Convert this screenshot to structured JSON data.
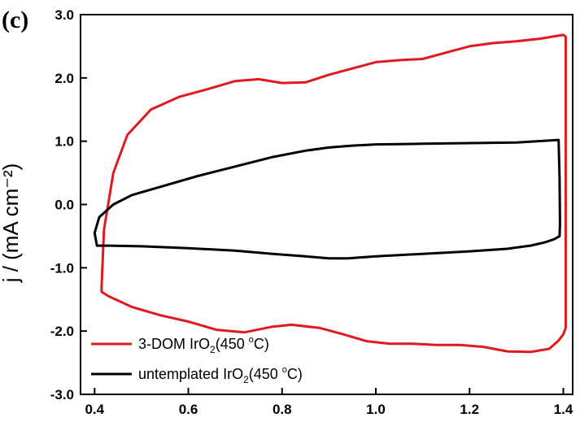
{
  "panel_label": "(c)",
  "chart_data": {
    "type": "line",
    "title": "",
    "xlabel": "",
    "ylabel": "j / (mA cm⁻²)",
    "xlim": [
      0.37,
      1.42
    ],
    "ylim": [
      -3.0,
      3.0
    ],
    "x_ticks": [
      0.4,
      0.6,
      0.8,
      1.0,
      1.2,
      1.4
    ],
    "x_tick_labels": [
      "0.4",
      "0.6",
      "0.8",
      "1.0",
      "1.2",
      "1.4"
    ],
    "y_ticks": [
      3.0,
      2.0,
      1.0,
      0.0,
      -1.0,
      -2.0,
      -3.0
    ],
    "y_tick_labels": [
      "3.0",
      "2.0",
      "1.0",
      "0.0",
      "-1.0",
      "-2.0",
      "-3.0"
    ],
    "grid": false,
    "legend_position": "bottom-left",
    "series": [
      {
        "name": "3-DOM IrO2(450 °C)",
        "legend_parts": {
          "prefix": "3-DOM IrO",
          "sub": "2",
          "mid": "(450 ",
          "sup": "o",
          "suffix": "C)"
        },
        "color": "#e0191f",
        "x": [
          0.415,
          0.42,
          0.44,
          0.47,
          0.52,
          0.58,
          0.64,
          0.7,
          0.75,
          0.8,
          0.85,
          0.9,
          0.95,
          1.0,
          1.05,
          1.1,
          1.15,
          1.2,
          1.25,
          1.3,
          1.35,
          1.4,
          1.405,
          1.405,
          1.4,
          1.39,
          1.37,
          1.33,
          1.28,
          1.23,
          1.18,
          1.13,
          1.08,
          1.03,
          0.98,
          0.93,
          0.88,
          0.82,
          0.78,
          0.72,
          0.66,
          0.6,
          0.54,
          0.48,
          0.43,
          0.415,
          0.415
        ],
        "y": [
          -1.3,
          -0.4,
          0.5,
          1.1,
          1.5,
          1.7,
          1.82,
          1.95,
          1.98,
          1.92,
          1.93,
          2.05,
          2.15,
          2.25,
          2.28,
          2.3,
          2.4,
          2.5,
          2.55,
          2.58,
          2.62,
          2.68,
          2.65,
          -1.95,
          -2.05,
          -2.15,
          -2.28,
          -2.33,
          -2.32,
          -2.25,
          -2.22,
          -2.22,
          -2.2,
          -2.2,
          -2.16,
          -2.05,
          -1.95,
          -1.9,
          -1.93,
          -2.02,
          -1.98,
          -1.85,
          -1.75,
          -1.62,
          -1.45,
          -1.38,
          -1.3
        ]
      },
      {
        "name": "untemplated IrO2(450 °C)",
        "legend_parts": {
          "prefix": "untemplated IrO",
          "sub": "2",
          "mid": "(450 ",
          "sup": "o",
          "suffix": "C)"
        },
        "color": "#000000",
        "x": [
          0.405,
          0.4,
          0.41,
          0.44,
          0.48,
          0.55,
          0.62,
          0.7,
          0.78,
          0.85,
          0.9,
          0.95,
          1.0,
          1.1,
          1.2,
          1.3,
          1.39,
          1.392,
          1.393,
          1.392,
          1.38,
          1.36,
          1.33,
          1.28,
          1.2,
          1.1,
          1.0,
          0.94,
          0.9,
          0.85,
          0.78,
          0.7,
          0.6,
          0.5,
          0.43,
          0.41,
          0.405
        ],
        "y": [
          -0.65,
          -0.45,
          -0.2,
          0.0,
          0.15,
          0.3,
          0.45,
          0.6,
          0.75,
          0.85,
          0.9,
          0.93,
          0.95,
          0.96,
          0.97,
          0.98,
          1.02,
          0.4,
          -0.3,
          -0.5,
          -0.55,
          -0.6,
          -0.65,
          -0.7,
          -0.74,
          -0.78,
          -0.82,
          -0.85,
          -0.85,
          -0.82,
          -0.78,
          -0.73,
          -0.69,
          -0.66,
          -0.65,
          -0.65,
          -0.65
        ]
      }
    ]
  }
}
